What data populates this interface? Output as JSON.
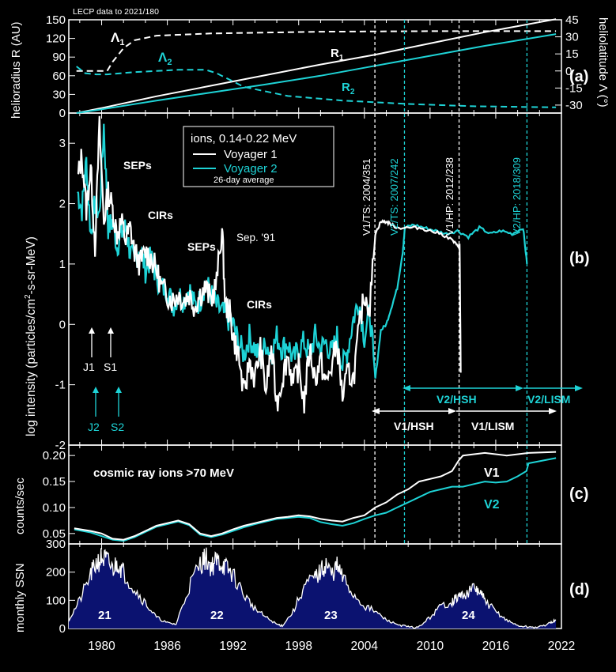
{
  "colors": {
    "background": "#000000",
    "v1": "#ffffff",
    "v2": "#1ed3d6",
    "ssn_fill": "#0b1270"
  },
  "chart_data": [
    {
      "panel": "(a)",
      "type": "line",
      "header_note": "LECP data to 2021/180",
      "ylabel": "helioradius R (AU)",
      "ylabel_right": "heliolatitude Λ (°)",
      "ylim": [
        0,
        150
      ],
      "yticks": [
        "0",
        "30",
        "60",
        "90",
        "120",
        "150"
      ],
      "ylim_right": [
        -37,
        45
      ],
      "yticks_right": [
        "-30",
        "-15",
        "0",
        "15",
        "30",
        "45"
      ],
      "xlim": [
        1977,
        2022
      ],
      "series": [
        {
          "name": "R1",
          "label_sub": "1",
          "color": "#ffffff",
          "dash": false,
          "axis": "left",
          "x": [
            1977.7,
            1980,
            1985,
            1990,
            1995,
            2000,
            2005,
            2010,
            2015,
            2021.5
          ],
          "y": [
            0,
            8,
            27,
            44,
            61,
            78,
            94,
            112,
            130,
            151
          ]
        },
        {
          "name": "R2",
          "label_sub": "2",
          "color": "#1ed3d6",
          "dash": false,
          "axis": "left",
          "x": [
            1977.7,
            1980,
            1985,
            1990,
            1995,
            2000,
            2005,
            2010,
            2015,
            2021.5
          ],
          "y": [
            0,
            6,
            20,
            33,
            46,
            60,
            76,
            92,
            108,
            127
          ]
        },
        {
          "name": "Λ1",
          "label_sub": "1",
          "color": "#ffffff",
          "dash": true,
          "axis": "right",
          "x": [
            1977.7,
            1979.5,
            1980.5,
            1981,
            1982,
            1983,
            1985,
            1990,
            2000,
            2010,
            2021.5
          ],
          "y": [
            0,
            0,
            0,
            8,
            20,
            27,
            31,
            33,
            34.5,
            35,
            35
          ]
        },
        {
          "name": "Λ2",
          "label_sub": "2",
          "color": "#1ed3d6",
          "dash": true,
          "axis": "right",
          "x": [
            1977.7,
            1978.5,
            1979.5,
            1980.5,
            1983,
            1987,
            1989.5,
            1990.5,
            1993,
            1997,
            2002,
            2008,
            2014,
            2021.5
          ],
          "y": [
            4,
            -2,
            -3,
            -3,
            -1,
            1,
            1,
            -2,
            -14,
            -22,
            -26,
            -29,
            -31,
            -32
          ]
        }
      ]
    },
    {
      "panel": "(b)",
      "type": "line",
      "ylabel": "log intensity (particles/cm²-s-sr-MeV)",
      "ylabel_main": "log intensity (particles/cm",
      "ylabel_sup": "2",
      "ylabel_tail": "-s-sr-MeV)",
      "ylim": [
        -2,
        3.5
      ],
      "yticks": [
        "-2",
        "-1",
        "0",
        "1",
        "2",
        "3"
      ],
      "xlim": [
        1977,
        2022
      ],
      "legend": {
        "title": "ions, 0.14-0.22 MeV",
        "v1": "Voyager 1",
        "v2": "Voyager 2",
        "note": "26-day average"
      },
      "annotations": [
        "SEPs",
        "CIRs",
        "SEPs",
        "Sep. '91",
        "CIRs",
        "J1",
        "S1",
        "J2",
        "S2"
      ],
      "event_lines": [
        {
          "label": "V1/TS: 2004/351",
          "x": 2004.96,
          "color": "#ffffff"
        },
        {
          "label": "V2/TS: 2007/242",
          "x": 2007.66,
          "color": "#1ed3d6"
        },
        {
          "label": "V1/HP: 2012/238",
          "x": 2012.65,
          "color": "#ffffff"
        },
        {
          "label": "V2/HP: 2018/309",
          "x": 2018.85,
          "color": "#1ed3d6"
        }
      ],
      "regions": [
        "V2/HSH",
        "V2/LISM",
        "V1/HSH",
        "V1/LISM"
      ],
      "series": [
        {
          "name": "Voyager 1",
          "color": "#ffffff",
          "x": [
            1977.8,
            1978.2,
            1978.6,
            1979.0,
            1979.4,
            1979.8,
            1980.2,
            1980.6,
            1981.0,
            1981.4,
            1981.8,
            1982.2,
            1982.6,
            1983.0,
            1983.5,
            1984.0,
            1984.5,
            1985.0,
            1985.5,
            1986.0,
            1986.5,
            1987.0,
            1987.5,
            1988.0,
            1988.5,
            1989.0,
            1989.5,
            1990.0,
            1990.5,
            1991.0,
            1991.3,
            1991.7,
            1992.0,
            1992.5,
            1993.0,
            1993.5,
            1994.0,
            1994.5,
            1995.0,
            1995.5,
            1996.0,
            1996.5,
            1997.0,
            1997.5,
            1998.0,
            1998.5,
            1999.0,
            1999.5,
            2000.0,
            2000.5,
            2001.0,
            2001.5,
            2002.0,
            2002.5,
            2003.0,
            2003.5,
            2004.0,
            2004.5,
            2005.0,
            2005.5,
            2006.0,
            2006.5,
            2007.0,
            2008.0,
            2009.0,
            2010.0,
            2011.0,
            2012.0,
            2012.5,
            2012.7,
            2012.8
          ],
          "y": [
            2.4,
            2.8,
            1.9,
            2.6,
            1.3,
            3.3,
            1.7,
            2.2,
            1.9,
            1.5,
            1.7,
            1.4,
            1.6,
            1.2,
            1.0,
            1.2,
            1.1,
            0.9,
            0.6,
            0.5,
            0.4,
            0.5,
            0.4,
            0.5,
            0.3,
            0.5,
            0.6,
            0.4,
            0.7,
            1.6,
            0.3,
            0.2,
            -0.2,
            -0.5,
            -1.2,
            -0.6,
            -0.9,
            -0.4,
            -1.1,
            -0.4,
            -1.3,
            -0.9,
            -0.5,
            -1.0,
            -0.7,
            -1.3,
            -0.4,
            -0.9,
            -0.6,
            -1.0,
            -0.7,
            -0.3,
            -1.2,
            -0.8,
            -0.9,
            -0.1,
            0.5,
            0.3,
            1.5,
            1.7,
            1.7,
            1.65,
            1.6,
            1.6,
            1.6,
            1.55,
            1.5,
            1.4,
            1.3,
            1.3,
            -0.8
          ]
        },
        {
          "name": "Voyager 2",
          "color": "#1ed3d6",
          "x": [
            1977.8,
            1978.2,
            1978.6,
            1979.0,
            1979.4,
            1979.8,
            1980.2,
            1980.6,
            1981.0,
            1981.4,
            1981.8,
            1982.2,
            1982.6,
            1983.0,
            1983.5,
            1984.0,
            1984.5,
            1985.0,
            1985.5,
            1986.0,
            1986.5,
            1987.0,
            1987.5,
            1988.0,
            1988.5,
            1989.0,
            1989.5,
            1990.0,
            1990.5,
            1991.0,
            1991.5,
            1992.0,
            1992.5,
            1993.0,
            1993.5,
            1994.0,
            1994.5,
            1995.0,
            1995.5,
            1996.0,
            1996.5,
            1997.0,
            1997.5,
            1998.0,
            1998.5,
            1999.0,
            1999.5,
            2000.0,
            2000.5,
            2001.0,
            2001.5,
            2002.0,
            2002.5,
            2003.0,
            2003.5,
            2004.0,
            2004.5,
            2005.0,
            2005.5,
            2006.0,
            2006.5,
            2007.0,
            2007.5,
            2007.7,
            2008.5,
            2009.5,
            2010.5,
            2011.5,
            2012.5,
            2013.5,
            2014.5,
            2015.5,
            2016.5,
            2017.5,
            2018.5,
            2018.85
          ],
          "y": [
            2.2,
            1.9,
            2.7,
            1.5,
            2.0,
            1.8,
            3.3,
            1.6,
            1.7,
            1.3,
            1.5,
            1.6,
            1.2,
            1.0,
            1.3,
            0.9,
            1.1,
            0.8,
            0.6,
            0.6,
            0.3,
            0.5,
            0.4,
            0.6,
            0.3,
            0.4,
            0.7,
            0.5,
            0.3,
            0.2,
            0.1,
            0.0,
            -0.3,
            -0.5,
            -0.2,
            -0.4,
            -0.6,
            -0.3,
            -0.5,
            -0.2,
            -0.4,
            -0.3,
            -0.6,
            -0.4,
            -0.3,
            -0.5,
            -0.2,
            -0.4,
            -0.3,
            -0.5,
            -0.2,
            -0.7,
            -0.4,
            0.1,
            0.4,
            -0.2,
            0.2,
            -0.9,
            -0.1,
            0.0,
            0.3,
            0.6,
            1.2,
            1.6,
            1.65,
            1.6,
            1.55,
            1.5,
            1.55,
            1.45,
            1.6,
            1.5,
            1.55,
            1.5,
            1.6,
            1.0
          ]
        }
      ]
    },
    {
      "panel": "(c)",
      "type": "line",
      "ylabel": "counts/sec",
      "title": "cosmic ray ions >70 MeV",
      "ylim": [
        0.03,
        0.22
      ],
      "yticks": [
        "0.05",
        "0.10",
        "0.15",
        "0.20"
      ],
      "xlim": [
        1977,
        2022
      ],
      "series": [
        {
          "name": "V1",
          "color": "#ffffff",
          "x": [
            1977.5,
            1979,
            1980,
            1981,
            1982,
            1983,
            1984,
            1985,
            1986,
            1987,
            1988,
            1989,
            1990,
            1991,
            1992,
            1993,
            1994,
            1995,
            1996,
            1997,
            1998,
            1999,
            2000,
            2001,
            2002,
            2003,
            2004,
            2005,
            2006,
            2007,
            2008,
            2009,
            2010,
            2011,
            2012,
            2012.6,
            2013,
            2015,
            2017,
            2019,
            2021.5
          ],
          "y": [
            0.06,
            0.055,
            0.05,
            0.04,
            0.038,
            0.045,
            0.055,
            0.065,
            0.07,
            0.075,
            0.068,
            0.05,
            0.045,
            0.05,
            0.058,
            0.065,
            0.07,
            0.075,
            0.08,
            0.082,
            0.085,
            0.083,
            0.078,
            0.075,
            0.073,
            0.08,
            0.085,
            0.1,
            0.11,
            0.125,
            0.135,
            0.15,
            0.155,
            0.16,
            0.17,
            0.19,
            0.2,
            0.205,
            0.2,
            0.205,
            0.207
          ]
        },
        {
          "name": "V2",
          "color": "#1ed3d6",
          "x": [
            1977.5,
            1979,
            1980,
            1981,
            1982,
            1983,
            1984,
            1985,
            1986,
            1987,
            1988,
            1989,
            1990,
            1991,
            1992,
            1993,
            1994,
            1995,
            1996,
            1997,
            1998,
            1999,
            2000,
            2001,
            2002,
            2003,
            2004,
            2005,
            2006,
            2007,
            2008,
            2009,
            2010,
            2011,
            2012,
            2013,
            2014,
            2015,
            2016,
            2017,
            2018,
            2018.8,
            2019,
            2021.5
          ],
          "y": [
            0.058,
            0.052,
            0.045,
            0.038,
            0.036,
            0.043,
            0.053,
            0.063,
            0.068,
            0.073,
            0.066,
            0.048,
            0.043,
            0.048,
            0.055,
            0.062,
            0.068,
            0.073,
            0.078,
            0.08,
            0.082,
            0.08,
            0.072,
            0.068,
            0.065,
            0.07,
            0.078,
            0.085,
            0.09,
            0.1,
            0.11,
            0.12,
            0.13,
            0.135,
            0.14,
            0.14,
            0.145,
            0.15,
            0.148,
            0.15,
            0.16,
            0.17,
            0.185,
            0.195
          ]
        }
      ]
    },
    {
      "panel": "(d)",
      "type": "area",
      "ylabel": "monthly SSN",
      "ylim": [
        0,
        300
      ],
      "yticks": [
        "0",
        "100",
        "200",
        "300"
      ],
      "xlim": [
        1977,
        2022
      ],
      "xticks": [
        "1980",
        "1986",
        "1992",
        "1998",
        "2004",
        "2010",
        "2016",
        "2022"
      ],
      "cycles": [
        "21",
        "22",
        "23",
        "24"
      ],
      "series": [
        {
          "name": "monthly SSN",
          "color": "#ffffff",
          "x": [
            1977,
            1978,
            1979,
            1979.5,
            1980,
            1980.5,
            1981,
            1981.5,
            1982,
            1983,
            1984,
            1985,
            1986,
            1986.8,
            1988,
            1989,
            1989.5,
            1990,
            1990.5,
            1991,
            1991.5,
            1992,
            1993,
            1994,
            1995,
            1996,
            1996.5,
            1997.5,
            1998.5,
            1999.5,
            2000,
            2000.5,
            2001,
            2001.5,
            2002,
            2003,
            2004,
            2005,
            2006,
            2007,
            2008,
            2008.9,
            2010,
            2011,
            2012,
            2012.5,
            2013,
            2014,
            2014.5,
            2015,
            2016,
            2017,
            2018,
            2019,
            2020,
            2021,
            2021.5
          ],
          "y": [
            30,
            100,
            190,
            230,
            250,
            240,
            210,
            235,
            200,
            140,
            90,
            40,
            20,
            15,
            150,
            230,
            250,
            220,
            240,
            230,
            210,
            190,
            120,
            70,
            40,
            15,
            10,
            60,
            150,
            180,
            200,
            230,
            190,
            220,
            180,
            120,
            80,
            60,
            30,
            15,
            5,
            3,
            40,
            80,
            95,
            110,
            120,
            140,
            130,
            100,
            60,
            30,
            10,
            5,
            5,
            20,
            30
          ]
        }
      ]
    }
  ]
}
